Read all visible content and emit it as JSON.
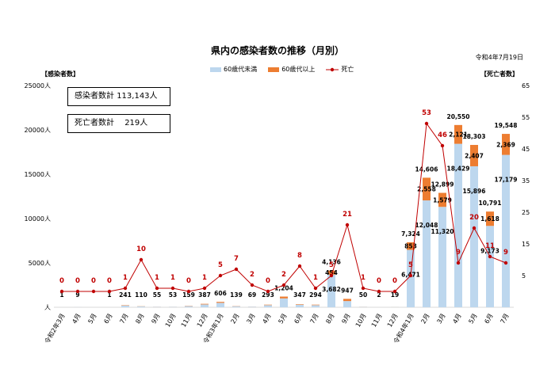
{
  "title": "県内の感染者数の推移（月別）",
  "date": "令和4年7月19日",
  "left_axis_label": "【感染者数】",
  "right_axis_label": "【死亡者数】",
  "summary": {
    "cases_label": "感染者数計",
    "cases_value": "113,143人",
    "deaths_label": "死亡者数計",
    "deaths_value": "219人"
  },
  "colors": {
    "under60": "#bdd7ee",
    "over60": "#ed7d31",
    "deaths": "#c00000"
  },
  "chart_data": {
    "type": "bar",
    "stacked": true,
    "title": "県内の感染者数の推移（月別）",
    "categories": [
      "令和2年3月",
      "4月",
      "5月",
      "6月",
      "7月",
      "8月",
      "9月",
      "10月",
      "11月",
      "12月",
      "令和3年1月",
      "2月",
      "3月",
      "4月",
      "5月",
      "6月",
      "7月",
      "8月",
      "9月",
      "10月",
      "11月",
      "12月",
      "令和4年1月",
      "2月",
      "3月",
      "4月",
      "5月",
      "6月",
      "7月"
    ],
    "left_ticks": [
      "25000人",
      "20000人",
      "15000人",
      "10000人",
      "5000人",
      "人"
    ],
    "right_ticks": [
      "65",
      "55",
      "45",
      "35",
      "25",
      "15",
      "5"
    ],
    "ylim": [
      0,
      25000
    ],
    "y2lim": [
      -5,
      65
    ],
    "series": [
      {
        "name": "60歳代未満",
        "axis": "left",
        "values": [
          1,
          8,
          0,
          1,
          200,
          90,
          45,
          45,
          130,
          320,
          500,
          115,
          60,
          240,
          1000,
          290,
          240,
          3682,
          700,
          40,
          2,
          15,
          6471,
          12048,
          11320,
          18429,
          15896,
          9173,
          17179
        ],
        "labels": [
          "",
          "",
          "",
          "",
          "",
          "",
          "",
          "",
          "",
          "",
          "",
          "",
          "",
          "",
          "",
          "",
          "",
          "3,682",
          "",
          "",
          "",
          "",
          "6,471",
          "12,048",
          "11,320",
          "18,429",
          "15,896",
          "9,173",
          "17,179"
        ]
      },
      {
        "name": "60歳代以上",
        "axis": "left",
        "values": [
          0,
          1,
          0,
          0,
          41,
          20,
          10,
          8,
          29,
          67,
          106,
          24,
          9,
          53,
          204,
          57,
          54,
          454,
          247,
          10,
          0,
          4,
          853,
          2558,
          1579,
          2121,
          2407,
          1618,
          2369
        ],
        "labels": [
          "",
          "",
          "",
          "",
          "",
          "",
          "",
          "",
          "",
          "",
          "",
          "",
          "",
          "",
          "",
          "",
          "",
          "454",
          "",
          "",
          "",
          "",
          "853",
          "2,558",
          "1,579",
          "2,121",
          "2,407",
          "1,618",
          "2,369"
        ]
      },
      {
        "name": "死亡",
        "axis": "right",
        "type": "line",
        "values": [
          0,
          0,
          0,
          0,
          1,
          10,
          1,
          1,
          0,
          1,
          5,
          7,
          2,
          0,
          2,
          8,
          1,
          5,
          21,
          1,
          0,
          0,
          5,
          53,
          46,
          9,
          20,
          11,
          9
        ]
      }
    ],
    "total_labels": [
      "1",
      "9",
      "",
      "1",
      "241",
      "110",
      "55",
      "53",
      "159",
      "387",
      "606",
      "139",
      "69",
      "293",
      "1,204",
      "347",
      "294",
      "4,136",
      "947",
      "50",
      "2",
      "19",
      "7,324",
      "14,606",
      "12,899",
      "20,550",
      "18,303",
      "10,791",
      "19,548"
    ]
  }
}
